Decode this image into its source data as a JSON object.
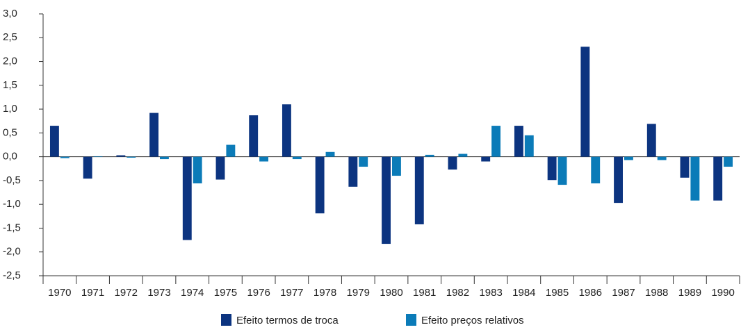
{
  "chart_data": {
    "type": "bar",
    "categories": [
      "1970",
      "1971",
      "1972",
      "1973",
      "1974",
      "1975",
      "1976",
      "1977",
      "1978",
      "1979",
      "1980",
      "1981",
      "1982",
      "1983",
      "1984",
      "1985",
      "1986",
      "1987",
      "1988",
      "1989",
      "1990"
    ],
    "series": [
      {
        "name": "Efeito termos de troca",
        "color": "#0c3480",
        "values": [
          0.65,
          -0.46,
          0.03,
          0.92,
          -1.75,
          -0.48,
          0.87,
          1.1,
          -1.19,
          -0.63,
          -1.83,
          -1.42,
          -0.27,
          -0.1,
          0.65,
          -0.49,
          2.31,
          -0.97,
          0.69,
          -0.44,
          -0.92
        ]
      },
      {
        "name": "Efeito preços relativos",
        "color": "#0b7bb8",
        "values": [
          -0.03,
          0.01,
          -0.02,
          -0.05,
          -0.56,
          0.25,
          -0.1,
          -0.05,
          0.1,
          -0.21,
          -0.4,
          0.04,
          0.06,
          0.65,
          0.45,
          -0.59,
          -0.56,
          -0.07,
          -0.07,
          -0.92,
          -0.21
        ]
      }
    ],
    "ylim": [
      -2.5,
      3.0
    ],
    "yticks": [
      {
        "value": -2.5,
        "label": "-2,5"
      },
      {
        "value": -2.0,
        "label": "-2,0"
      },
      {
        "value": -1.5,
        "label": "-1,5"
      },
      {
        "value": -1.0,
        "label": "-1,0"
      },
      {
        "value": -0.5,
        "label": "-0,5"
      },
      {
        "value": 0,
        "label": "0,0"
      },
      {
        "value": 0.5,
        "label": "0,5"
      },
      {
        "value": 1.0,
        "label": "1,0"
      },
      {
        "value": 1.5,
        "label": "1,5"
      },
      {
        "value": 2.0,
        "label": "2,0"
      },
      {
        "value": 2.5,
        "label": "2,5"
      },
      {
        "value": 3.0,
        "label": "3,0"
      }
    ],
    "grid": false,
    "legend": "bottom"
  }
}
